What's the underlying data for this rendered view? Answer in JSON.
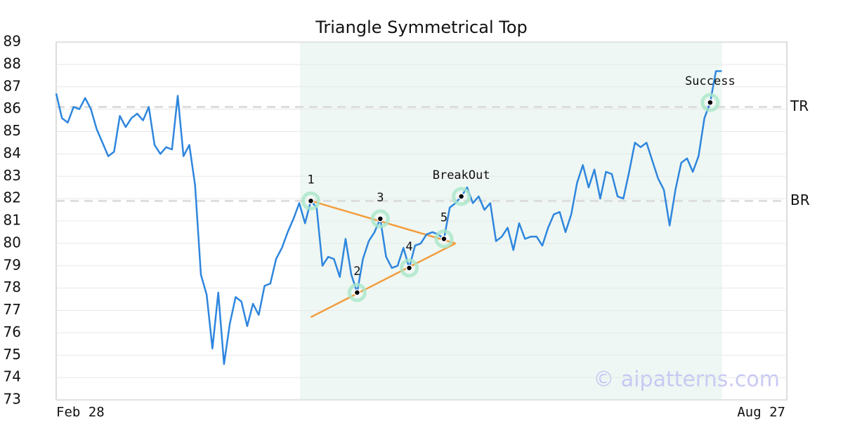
{
  "chart_data": {
    "type": "line",
    "title": "Triangle Symmetrical Top",
    "categories": [
      "Feb 28",
      null,
      null,
      null,
      null,
      null,
      null,
      null,
      null,
      null,
      null,
      null,
      null,
      null,
      null,
      null,
      null,
      null,
      null,
      null,
      null,
      null,
      null,
      null,
      null,
      null,
      null,
      null,
      null,
      null,
      null,
      null,
      null,
      null,
      null,
      null,
      null,
      null,
      null,
      null,
      null,
      null,
      null,
      null,
      null,
      null,
      null,
      null,
      null,
      null,
      null,
      null,
      null,
      null,
      null,
      null,
      null,
      null,
      null,
      null,
      null,
      null,
      null,
      null,
      null,
      null,
      null,
      null,
      null,
      null,
      null,
      null,
      null,
      null,
      null,
      null,
      null,
      null,
      null,
      null,
      null,
      null,
      null,
      null,
      null,
      null,
      null,
      null,
      null,
      null,
      null,
      null,
      null,
      null,
      null,
      null,
      null,
      null,
      null,
      null,
      null,
      null,
      null,
      null,
      null,
      null,
      null,
      null,
      null,
      null,
      null,
      null,
      null,
      null,
      null,
      null,
      null,
      null,
      null,
      null,
      null,
      null,
      null,
      null,
      null,
      null,
      "Aug 27"
    ],
    "series": [
      {
        "color": "#2e86de",
        "values": [
          86.7,
          85.6,
          85.4,
          86.1,
          86.0,
          86.5,
          86.0,
          85.1,
          84.5,
          83.9,
          84.1,
          85.7,
          85.2,
          85.6,
          85.8,
          85.5,
          86.1,
          84.4,
          84.0,
          84.3,
          84.2,
          86.6,
          83.9,
          84.4,
          82.6,
          78.6,
          77.7,
          75.3,
          77.8,
          74.6,
          76.4,
          77.6,
          77.4,
          76.3,
          77.3,
          76.8,
          78.1,
          78.2,
          79.3,
          79.8,
          80.5,
          81.1,
          81.8,
          80.9,
          81.9,
          81.6,
          79.0,
          79.4,
          79.3,
          78.5,
          80.2,
          78.6,
          77.8,
          79.3,
          80.1,
          80.5,
          81.1,
          79.4,
          78.9,
          79.0,
          79.8,
          78.9,
          79.9,
          80.0,
          80.4,
          80.5,
          80.4,
          80.2,
          81.6,
          81.8,
          82.1,
          82.5,
          81.8,
          82.1,
          81.5,
          81.8,
          80.1,
          80.3,
          80.7,
          79.7,
          80.9,
          80.2,
          80.3,
          80.3,
          79.9,
          80.7,
          81.3,
          81.4,
          80.5,
          81.3,
          82.7,
          83.5,
          82.5,
          83.3,
          82.0,
          83.2,
          83.1,
          82.1,
          82.0,
          83.2,
          84.5,
          84.3,
          84.5,
          83.7,
          82.9,
          82.4,
          80.8,
          82.4,
          83.6,
          83.8,
          83.2,
          83.9,
          85.6,
          86.3,
          87.7,
          87.7,
          null,
          null,
          null,
          null,
          null,
          null,
          null,
          null,
          null,
          null,
          null
        ]
      }
    ],
    "ylim": [
      73,
      89
    ],
    "yticks": [
      73,
      74,
      75,
      76,
      77,
      78,
      79,
      80,
      81,
      82,
      83,
      84,
      85,
      86,
      87,
      88,
      89
    ],
    "grid": true,
    "reference_lines": [
      {
        "label": "TR",
        "value": 86.1
      },
      {
        "label": "BR",
        "value": 81.9
      }
    ],
    "trendlines": [
      {
        "color": "#f39c3c",
        "indices": [
          44,
          69
        ],
        "values": [
          81.9,
          80.0
        ]
      },
      {
        "color": "#f39c3c",
        "indices": [
          44,
          69
        ],
        "values": [
          76.7,
          80.0
        ]
      }
    ],
    "points": [
      {
        "label": "1",
        "index": 44
      },
      {
        "label": "2",
        "index": 52
      },
      {
        "label": "3",
        "index": 56
      },
      {
        "label": "4",
        "index": 61
      },
      {
        "label": "5",
        "index": 67
      },
      {
        "label": "BreakOut",
        "index": 70
      },
      {
        "label": "Success",
        "index": 113
      }
    ],
    "watermark": "© aipatterns.com"
  }
}
